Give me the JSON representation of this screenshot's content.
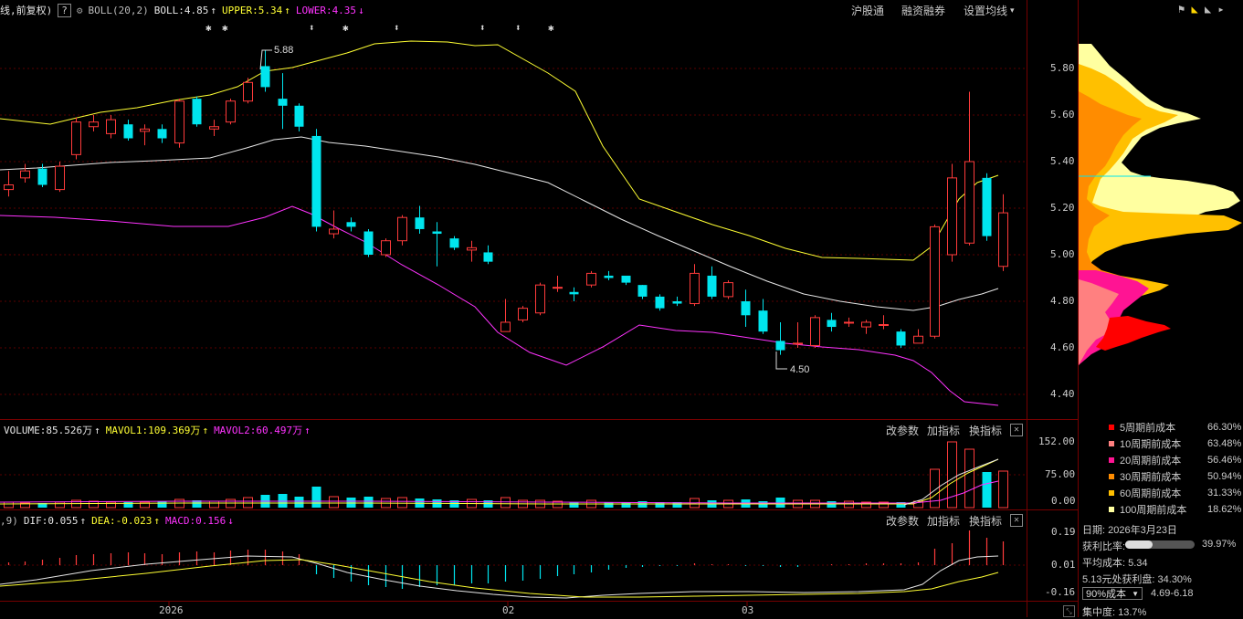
{
  "top_bar": {
    "title": "线,前复权)",
    "help": "?",
    "indicator_name": "BOLL(20,2)",
    "boll": "BOLL:4.85",
    "upper": "UPPER:5.34",
    "lower": "LOWER:4.35",
    "arrow_up": "↑",
    "arrow_down": "↓"
  },
  "menu": {
    "hgt": "沪股通",
    "margin": "融资融券",
    "ma_settings": "设置均线"
  },
  "price_axis": [
    "5.80",
    "5.60",
    "5.40",
    "5.20",
    "5.00",
    "4.80",
    "4.60",
    "4.40"
  ],
  "annotations": {
    "high": "5.88",
    "low": "4.50"
  },
  "volume_bar": {
    "volume": "VOLUME:85.526万",
    "mavol1": "MAVOL1:109.369万",
    "mavol2": "MAVOL2:60.497万",
    "arrow": "↑",
    "axis": [
      "152.00",
      "75.00",
      "0.00"
    ]
  },
  "macd_bar": {
    "prefix": ",9)",
    "dif": "DIF:0.055",
    "dea": "DEA:-0.023",
    "macd": "MACD:0.156",
    "arrow_up": "↑",
    "arrow_down": "↓",
    "axis": [
      "0.19",
      "0.01",
      "-0.16"
    ]
  },
  "indicator_menu": {
    "params": "改参数",
    "add": "加指标",
    "switch": "换指标",
    "close": "✕"
  },
  "time_axis": [
    "2026",
    "02",
    "03"
  ],
  "legend": [
    {
      "label": "5周期前成本",
      "pct": "66.30%",
      "color": "#ff0000"
    },
    {
      "label": "10周期前成本",
      "pct": "63.48%",
      "color": "#ff8080"
    },
    {
      "label": "20周期前成本",
      "pct": "56.46%",
      "color": "#ff1493"
    },
    {
      "label": "30周期前成本",
      "pct": "50.94%",
      "color": "#ff8c00"
    },
    {
      "label": "60周期前成本",
      "pct": "31.33%",
      "color": "#ffc000"
    },
    {
      "label": "100周期前成本",
      "pct": "18.62%",
      "color": "#ffffa0"
    }
  ],
  "info": {
    "date": "日期: 2026年3月23日",
    "profit_ratio_label": "获利比率:",
    "profit_ratio": "39.97%",
    "profit_ratio_value": 0.3997,
    "avg_cost": "平均成本: 5.34",
    "profit_at": "5.13元处获利盘: 34.30%",
    "cost_select": "90%成本",
    "cost_range": "4.69-6.18",
    "concentration": "集中度: 13.7%"
  },
  "colors": {
    "up": "#ff3b3b",
    "down": "#00e5ee",
    "boll": "#e6e6e6",
    "upper": "#ffff33",
    "lower": "#ff33ff"
  }
}
